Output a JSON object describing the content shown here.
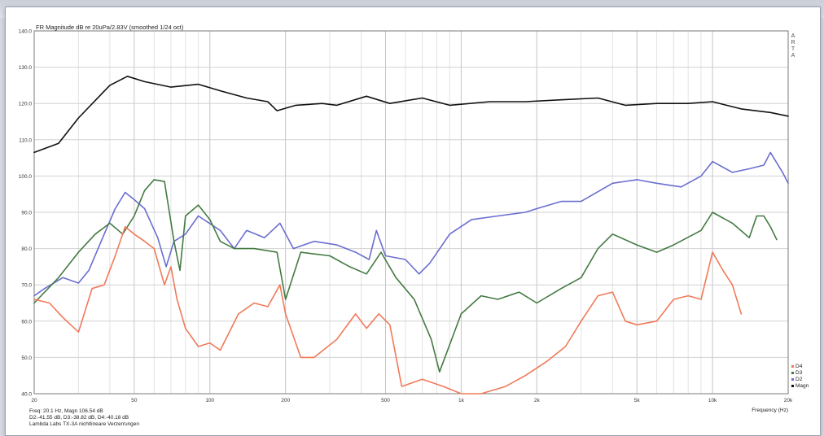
{
  "chart_data": {
    "type": "line",
    "title": "FR Magnitude dB re 20uPa/2.83V (smoothed 1/24 oct)",
    "watermark": "ARTA",
    "xlabel": "Frequency (Hz)",
    "x_scale": "log",
    "xlim": [
      20,
      20000
    ],
    "ylim": [
      40,
      140
    ],
    "grid": true,
    "legend_position": "bottom-right",
    "x_ticks": [
      {
        "value": 20,
        "label": "20"
      },
      {
        "value": 50,
        "label": "50"
      },
      {
        "value": 100,
        "label": "100"
      },
      {
        "value": 200,
        "label": "200"
      },
      {
        "value": 500,
        "label": "500"
      },
      {
        "value": 1000,
        "label": "1k"
      },
      {
        "value": 2000,
        "label": "2k"
      },
      {
        "value": 5000,
        "label": "5k"
      },
      {
        "value": 10000,
        "label": "10k"
      },
      {
        "value": 20000,
        "label": "20k"
      }
    ],
    "y_ticks": [
      {
        "value": 140,
        "label": "140.0"
      },
      {
        "value": 130,
        "label": "130.0"
      },
      {
        "value": 120,
        "label": "120.0"
      },
      {
        "value": 110,
        "label": "110.0"
      },
      {
        "value": 100,
        "label": "100.0"
      },
      {
        "value": 90,
        "label": "90.0"
      },
      {
        "value": 80,
        "label": "80.0"
      },
      {
        "value": 70,
        "label": "70.0"
      },
      {
        "value": 60,
        "label": "60.0"
      },
      {
        "value": 50,
        "label": "50.0"
      },
      {
        "value": 40,
        "label": "40.0"
      }
    ],
    "series": [
      {
        "name": "Magn",
        "color": "#111111",
        "points": [
          [
            20,
            106.5
          ],
          [
            25,
            109
          ],
          [
            30,
            116
          ],
          [
            40,
            125
          ],
          [
            47,
            127.5
          ],
          [
            55,
            126
          ],
          [
            70,
            124.5
          ],
          [
            90,
            125.3
          ],
          [
            110,
            123.5
          ],
          [
            140,
            121.5
          ],
          [
            170,
            120.5
          ],
          [
            185,
            118
          ],
          [
            220,
            119.5
          ],
          [
            280,
            120
          ],
          [
            320,
            119.5
          ],
          [
            420,
            122
          ],
          [
            520,
            120
          ],
          [
            700,
            121.5
          ],
          [
            900,
            119.5
          ],
          [
            1300,
            120.5
          ],
          [
            1800,
            120.5
          ],
          [
            2500,
            121
          ],
          [
            3500,
            121.5
          ],
          [
            4500,
            119.5
          ],
          [
            6000,
            120
          ],
          [
            8000,
            120
          ],
          [
            10000,
            120.5
          ],
          [
            13000,
            118.5
          ],
          [
            17000,
            117.5
          ],
          [
            20000,
            116.5
          ]
        ]
      },
      {
        "name": "D2",
        "color": "#6b6ed0",
        "points": [
          [
            20,
            67
          ],
          [
            22,
            69
          ],
          [
            26,
            72
          ],
          [
            30,
            70.5
          ],
          [
            33,
            74
          ],
          [
            38,
            84
          ],
          [
            42,
            91
          ],
          [
            46,
            95.5
          ],
          [
            50,
            93.5
          ],
          [
            55,
            91
          ],
          [
            62,
            83
          ],
          [
            67,
            75
          ],
          [
            72,
            82
          ],
          [
            80,
            84
          ],
          [
            90,
            89
          ],
          [
            110,
            85
          ],
          [
            125,
            80
          ],
          [
            140,
            85
          ],
          [
            165,
            83
          ],
          [
            190,
            87
          ],
          [
            215,
            80
          ],
          [
            260,
            82
          ],
          [
            320,
            81
          ],
          [
            380,
            79
          ],
          [
            430,
            77
          ],
          [
            460,
            85
          ],
          [
            500,
            78
          ],
          [
            600,
            77
          ],
          [
            680,
            73
          ],
          [
            750,
            76
          ],
          [
            900,
            84
          ],
          [
            1100,
            88
          ],
          [
            1400,
            89
          ],
          [
            1800,
            90
          ],
          [
            2000,
            91
          ],
          [
            2500,
            93
          ],
          [
            3000,
            93
          ],
          [
            4000,
            98
          ],
          [
            5000,
            99
          ],
          [
            6000,
            98
          ],
          [
            7500,
            97
          ],
          [
            9000,
            100
          ],
          [
            10000,
            104
          ],
          [
            12000,
            101
          ],
          [
            14000,
            102
          ],
          [
            16000,
            103
          ],
          [
            17000,
            106.5
          ],
          [
            19000,
            101
          ],
          [
            20000,
            98
          ]
        ]
      },
      {
        "name": "D3",
        "color": "#447a42",
        "points": [
          [
            20,
            65
          ],
          [
            25,
            72
          ],
          [
            30,
            79
          ],
          [
            35,
            84
          ],
          [
            40,
            87
          ],
          [
            45,
            84
          ],
          [
            50,
            89
          ],
          [
            55,
            96
          ],
          [
            60,
            99
          ],
          [
            66,
            98.5
          ],
          [
            72,
            82
          ],
          [
            76,
            74
          ],
          [
            80,
            89
          ],
          [
            90,
            92
          ],
          [
            100,
            88
          ],
          [
            110,
            82
          ],
          [
            125,
            80
          ],
          [
            150,
            80
          ],
          [
            185,
            79
          ],
          [
            200,
            66
          ],
          [
            230,
            79
          ],
          [
            300,
            78
          ],
          [
            360,
            75
          ],
          [
            420,
            73
          ],
          [
            480,
            79
          ],
          [
            550,
            72
          ],
          [
            650,
            66
          ],
          [
            760,
            55
          ],
          [
            820,
            46
          ],
          [
            1000,
            62
          ],
          [
            1200,
            67
          ],
          [
            1400,
            66
          ],
          [
            1700,
            68
          ],
          [
            2000,
            65
          ],
          [
            2500,
            69
          ],
          [
            3000,
            72
          ],
          [
            3500,
            80
          ],
          [
            4000,
            84
          ],
          [
            5000,
            81
          ],
          [
            6000,
            79
          ],
          [
            7000,
            81
          ],
          [
            9000,
            85
          ],
          [
            10000,
            90
          ],
          [
            12000,
            87
          ],
          [
            14000,
            83
          ],
          [
            15000,
            89
          ],
          [
            16000,
            89
          ],
          [
            17000,
            86
          ],
          [
            18000,
            82.5
          ]
        ]
      },
      {
        "name": "D4",
        "color": "#f07a5a",
        "points": [
          [
            20,
            66
          ],
          [
            23,
            65
          ],
          [
            26,
            61
          ],
          [
            30,
            57
          ],
          [
            34,
            69
          ],
          [
            38,
            70
          ],
          [
            42,
            78
          ],
          [
            46,
            86
          ],
          [
            50,
            84
          ],
          [
            55,
            82
          ],
          [
            60,
            80
          ],
          [
            66,
            70
          ],
          [
            70,
            75
          ],
          [
            74,
            66
          ],
          [
            80,
            58
          ],
          [
            90,
            53
          ],
          [
            100,
            54
          ],
          [
            110,
            52
          ],
          [
            130,
            62
          ],
          [
            150,
            65
          ],
          [
            170,
            64
          ],
          [
            190,
            70
          ],
          [
            200,
            62
          ],
          [
            230,
            50
          ],
          [
            260,
            50
          ],
          [
            320,
            55
          ],
          [
            380,
            62
          ],
          [
            420,
            58
          ],
          [
            470,
            62
          ],
          [
            520,
            59
          ],
          [
            580,
            42
          ],
          [
            700,
            44
          ],
          [
            850,
            42
          ],
          [
            1000,
            40
          ],
          [
            1200,
            40
          ],
          [
            1500,
            42
          ],
          [
            1800,
            45
          ],
          [
            2200,
            49
          ],
          [
            2600,
            53
          ],
          [
            3000,
            60
          ],
          [
            3500,
            67
          ],
          [
            4000,
            68
          ],
          [
            4500,
            60
          ],
          [
            5000,
            59
          ],
          [
            6000,
            60
          ],
          [
            7000,
            66
          ],
          [
            8000,
            67
          ],
          [
            9000,
            66
          ],
          [
            10000,
            79
          ],
          [
            11000,
            74
          ],
          [
            12000,
            70
          ],
          [
            13000,
            62
          ]
        ]
      }
    ],
    "legend": [
      {
        "name": "D4",
        "color": "#f07a5a"
      },
      {
        "name": "D3",
        "color": "#447a42"
      },
      {
        "name": "D2",
        "color": "#6b6ed0"
      },
      {
        "name": "Magn",
        "color": "#111111"
      }
    ],
    "footer_lines": [
      "Freq: 20.1 Hz, Magn 106.54 dB",
      "D2:-41.55 dB, D3:-38.82 dB, D4:-40.18 dB",
      "Lambda Labs TX-3A nichtlineare Verzerrungen"
    ]
  }
}
